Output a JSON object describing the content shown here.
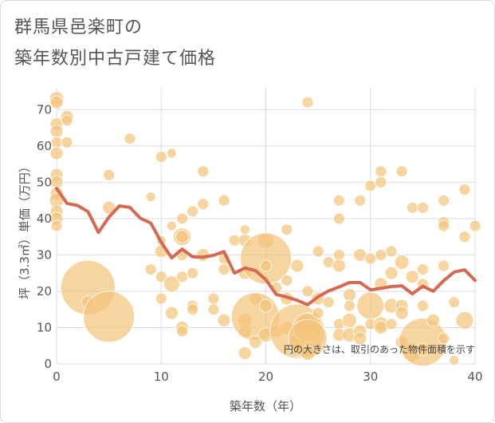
{
  "title_line1": "群馬県邑楽町の",
  "title_line2": "築年数別中古戸建て価格",
  "chart_data": {
    "type": "scatter",
    "title": "群馬県邑楽町の築年数別中古戸建て価格",
    "xlabel": "築年数（年）",
    "ylabel": "坪（3.3㎡）単価（万円）",
    "xlim": [
      0,
      40
    ],
    "ylim": [
      0,
      76
    ],
    "x_ticks": [
      0,
      10,
      20,
      30,
      40
    ],
    "y_ticks": [
      0,
      10,
      20,
      30,
      40,
      50,
      60,
      70
    ],
    "grid": true,
    "note": "円の大きさは、取引のあった物件面積を示す",
    "colors": {
      "bubble": "#f3c379",
      "line": "#d46a52",
      "grid": "#d6dce6"
    },
    "series": [
      {
        "type": "bubble",
        "points": [
          {
            "x": 0,
            "y": 73,
            "s": 9
          },
          {
            "x": 0,
            "y": 72,
            "s": 8
          },
          {
            "x": 0,
            "y": 66,
            "s": 8
          },
          {
            "x": 0,
            "y": 64,
            "s": 8
          },
          {
            "x": 0,
            "y": 61,
            "s": 7
          },
          {
            "x": 0,
            "y": 58,
            "s": 8
          },
          {
            "x": 0,
            "y": 52,
            "s": 8
          },
          {
            "x": 0,
            "y": 50,
            "s": 8
          },
          {
            "x": 0,
            "y": 47,
            "s": 8
          },
          {
            "x": 0,
            "y": 45,
            "s": 9
          },
          {
            "x": 0,
            "y": 42,
            "s": 8
          },
          {
            "x": 0,
            "y": 40,
            "s": 8
          },
          {
            "x": 0,
            "y": 38,
            "s": 7
          },
          {
            "x": 1,
            "y": 68,
            "s": 8
          },
          {
            "x": 1,
            "y": 67,
            "s": 7
          },
          {
            "x": 1,
            "y": 61,
            "s": 7
          },
          {
            "x": 3,
            "y": 21,
            "s": 34
          },
          {
            "x": 3,
            "y": 17,
            "s": 8
          },
          {
            "x": 5,
            "y": 52,
            "s": 7
          },
          {
            "x": 5,
            "y": 43,
            "s": 8
          },
          {
            "x": 5,
            "y": 13,
            "s": 32
          },
          {
            "x": 7,
            "y": 62,
            "s": 7
          },
          {
            "x": 9,
            "y": 46,
            "s": 6
          },
          {
            "x": 9,
            "y": 26,
            "s": 7
          },
          {
            "x": 10,
            "y": 57,
            "s": 7
          },
          {
            "x": 10,
            "y": 34,
            "s": 6
          },
          {
            "x": 10,
            "y": 31,
            "s": 8
          },
          {
            "x": 10,
            "y": 24,
            "s": 7
          },
          {
            "x": 10,
            "y": 18,
            "s": 7
          },
          {
            "x": 11,
            "y": 58,
            "s": 6
          },
          {
            "x": 11,
            "y": 38,
            "s": 6
          },
          {
            "x": 11,
            "y": 22,
            "s": 10
          },
          {
            "x": 11,
            "y": 14,
            "s": 8
          },
          {
            "x": 12,
            "y": 40,
            "s": 7
          },
          {
            "x": 12,
            "y": 35,
            "s": 11
          },
          {
            "x": 12,
            "y": 35,
            "s": 8
          },
          {
            "x": 12,
            "y": 30,
            "s": 7
          },
          {
            "x": 12,
            "y": 24,
            "s": 7
          },
          {
            "x": 12,
            "y": 10,
            "s": 8
          },
          {
            "x": 12,
            "y": 9,
            "s": 7
          },
          {
            "x": 13,
            "y": 42,
            "s": 7
          },
          {
            "x": 13,
            "y": 25,
            "s": 7
          },
          {
            "x": 13,
            "y": 16,
            "s": 7
          },
          {
            "x": 13,
            "y": 15,
            "s": 7
          },
          {
            "x": 14,
            "y": 53,
            "s": 7
          },
          {
            "x": 14,
            "y": 44,
            "s": 7
          },
          {
            "x": 14,
            "y": 30,
            "s": 8
          },
          {
            "x": 15,
            "y": 18,
            "s": 7
          },
          {
            "x": 15,
            "y": 15,
            "s": 7
          },
          {
            "x": 16,
            "y": 45,
            "s": 7
          },
          {
            "x": 16,
            "y": 29,
            "s": 7
          },
          {
            "x": 16,
            "y": 26,
            "s": 7
          },
          {
            "x": 16,
            "y": 12,
            "s": 8
          },
          {
            "x": 17,
            "y": 34,
            "s": 7
          },
          {
            "x": 18,
            "y": 37,
            "s": 6
          },
          {
            "x": 18,
            "y": 34,
            "s": 8
          },
          {
            "x": 18,
            "y": 25,
            "s": 8
          },
          {
            "x": 18,
            "y": 12,
            "s": 9
          },
          {
            "x": 18,
            "y": 9,
            "s": 8
          },
          {
            "x": 18,
            "y": 3,
            "s": 8
          },
          {
            "x": 19,
            "y": 18,
            "s": 8
          },
          {
            "x": 19,
            "y": 13,
            "s": 30
          },
          {
            "x": 19,
            "y": 6,
            "s": 8
          },
          {
            "x": 20,
            "y": 34,
            "s": 10
          },
          {
            "x": 20,
            "y": 29,
            "s": 32
          },
          {
            "x": 20,
            "y": 27,
            "s": 7
          },
          {
            "x": 20,
            "y": 16,
            "s": 8
          },
          {
            "x": 20,
            "y": 8,
            "s": 9
          },
          {
            "x": 21,
            "y": 21,
            "s": 7
          },
          {
            "x": 21,
            "y": 9,
            "s": 8
          },
          {
            "x": 22,
            "y": 37,
            "s": 7
          },
          {
            "x": 22,
            "y": 23,
            "s": 7
          },
          {
            "x": 22,
            "y": 18,
            "s": 8
          },
          {
            "x": 22,
            "y": 10,
            "s": 8
          },
          {
            "x": 23,
            "y": 27,
            "s": 8
          },
          {
            "x": 23,
            "y": 9,
            "s": 34
          },
          {
            "x": 23,
            "y": 6,
            "s": 10
          },
          {
            "x": 23,
            "y": 4,
            "s": 9
          },
          {
            "x": 24,
            "y": 72,
            "s": 7
          },
          {
            "x": 24,
            "y": 20,
            "s": 7
          },
          {
            "x": 24,
            "y": 11,
            "s": 14
          },
          {
            "x": 24,
            "y": 10,
            "s": 18
          },
          {
            "x": 24,
            "y": 7,
            "s": 24
          },
          {
            "x": 24,
            "y": 3,
            "s": 9
          },
          {
            "x": 25,
            "y": 31,
            "s": 7
          },
          {
            "x": 25,
            "y": 18,
            "s": 8
          },
          {
            "x": 25,
            "y": 14,
            "s": 7
          },
          {
            "x": 26,
            "y": 28,
            "s": 7
          },
          {
            "x": 26,
            "y": 17,
            "s": 7
          },
          {
            "x": 27,
            "y": 45,
            "s": 7
          },
          {
            "x": 27,
            "y": 40,
            "s": 7
          },
          {
            "x": 27,
            "y": 30,
            "s": 7
          },
          {
            "x": 27,
            "y": 27,
            "s": 8
          },
          {
            "x": 27,
            "y": 11,
            "s": 7
          },
          {
            "x": 27,
            "y": 8,
            "s": 8
          },
          {
            "x": 28,
            "y": 19,
            "s": 8
          },
          {
            "x": 28,
            "y": 16,
            "s": 7
          },
          {
            "x": 28,
            "y": 12,
            "s": 9
          },
          {
            "x": 28,
            "y": 8,
            "s": 9
          },
          {
            "x": 29,
            "y": 45,
            "s": 7
          },
          {
            "x": 29,
            "y": 30,
            "s": 8
          },
          {
            "x": 29,
            "y": 9,
            "s": 8
          },
          {
            "x": 29,
            "y": 7,
            "s": 8
          },
          {
            "x": 30,
            "y": 49,
            "s": 7
          },
          {
            "x": 30,
            "y": 29,
            "s": 7
          },
          {
            "x": 30,
            "y": 16,
            "s": 17
          },
          {
            "x": 30,
            "y": 11,
            "s": 7
          },
          {
            "x": 31,
            "y": 53,
            "s": 7
          },
          {
            "x": 31,
            "y": 50,
            "s": 7
          },
          {
            "x": 31,
            "y": 30,
            "s": 7
          },
          {
            "x": 31,
            "y": 22,
            "s": 8
          },
          {
            "x": 31,
            "y": 11,
            "s": 9
          },
          {
            "x": 31,
            "y": 10,
            "s": 8
          },
          {
            "x": 32,
            "y": 31,
            "s": 7
          },
          {
            "x": 32,
            "y": 25,
            "s": 8
          },
          {
            "x": 32,
            "y": 16,
            "s": 9
          },
          {
            "x": 32,
            "y": 11,
            "s": 7
          },
          {
            "x": 33,
            "y": 53,
            "s": 7
          },
          {
            "x": 33,
            "y": 28,
            "s": 9
          },
          {
            "x": 33,
            "y": 16,
            "s": 8
          },
          {
            "x": 33,
            "y": 14,
            "s": 8
          },
          {
            "x": 33,
            "y": 6,
            "s": 8
          },
          {
            "x": 34,
            "y": 43,
            "s": 7
          },
          {
            "x": 34,
            "y": 24,
            "s": 8
          },
          {
            "x": 34,
            "y": 3,
            "s": 11
          },
          {
            "x": 35,
            "y": 43,
            "s": 7
          },
          {
            "x": 35,
            "y": 26,
            "s": 7
          },
          {
            "x": 35,
            "y": 22,
            "s": 7
          },
          {
            "x": 35,
            "y": 16,
            "s": 7
          },
          {
            "x": 35,
            "y": 6,
            "s": 30
          },
          {
            "x": 35,
            "y": 4,
            "s": 8
          },
          {
            "x": 36,
            "y": 12,
            "s": 8
          },
          {
            "x": 37,
            "y": 45,
            "s": 7
          },
          {
            "x": 37,
            "y": 39,
            "s": 7
          },
          {
            "x": 37,
            "y": 38,
            "s": 7
          },
          {
            "x": 37,
            "y": 27,
            "s": 7
          },
          {
            "x": 37,
            "y": 7,
            "s": 7
          },
          {
            "x": 38,
            "y": 17,
            "s": 7
          },
          {
            "x": 38,
            "y": 1,
            "s": 6
          },
          {
            "x": 39,
            "y": 48,
            "s": 7
          },
          {
            "x": 39,
            "y": 35,
            "s": 7
          },
          {
            "x": 39,
            "y": 12,
            "s": 11
          },
          {
            "x": 40,
            "y": 38,
            "s": 7
          }
        ]
      },
      {
        "type": "line",
        "x": [
          0,
          1,
          2,
          3,
          4,
          5,
          6,
          7,
          8,
          9,
          10,
          11,
          12,
          13,
          14,
          15,
          16,
          17,
          18,
          19,
          20,
          21,
          22,
          23,
          24,
          25,
          26,
          27,
          28,
          29,
          30,
          31,
          32,
          33,
          34,
          35,
          36,
          37,
          38,
          39,
          40
        ],
        "y": [
          48.3,
          44.2,
          43.6,
          41.9,
          36.2,
          40.4,
          43.5,
          43.1,
          40.1,
          38.8,
          33.5,
          29.2,
          31.6,
          29.5,
          29.4,
          29.9,
          30.9,
          25.0,
          26.4,
          25.7,
          23.2,
          19.1,
          18.4,
          17.5,
          16.3,
          18.5,
          20.1,
          21.2,
          22.4,
          22.4,
          20.4,
          20.8,
          21.3,
          21.5,
          19.3,
          21.4,
          20.0,
          22.9,
          25.3,
          25.9,
          23.0
        ]
      }
    ]
  }
}
